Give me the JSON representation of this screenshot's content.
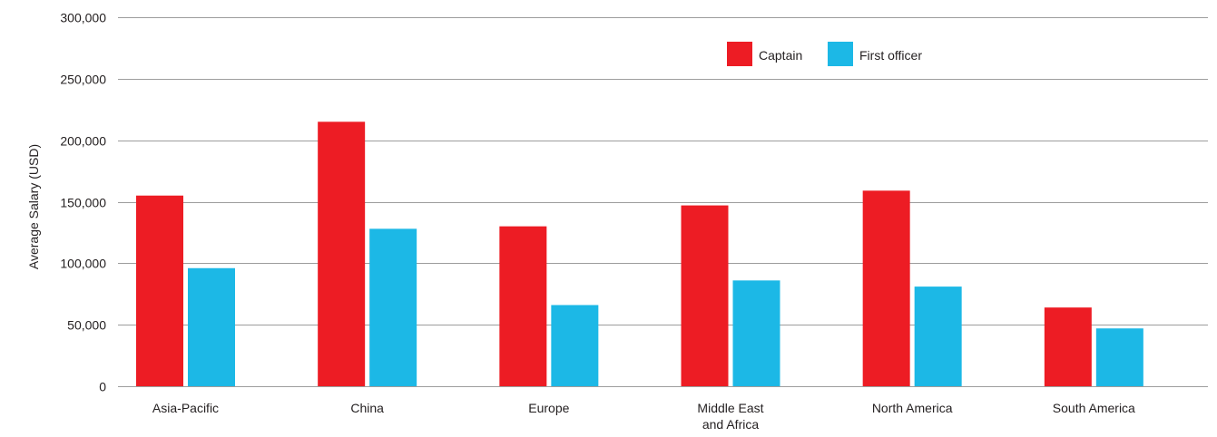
{
  "chart_data": {
    "type": "bar",
    "title": "",
    "xlabel": "",
    "ylabel": "Average Salary (USD)",
    "ylim": [
      0,
      300000
    ],
    "yticks": [
      0,
      50000,
      100000,
      150000,
      200000,
      250000,
      300000
    ],
    "ytick_labels": [
      "0",
      "50,000",
      "100,000",
      "150,000",
      "200,000",
      "250,000",
      "300,000"
    ],
    "categories": [
      "Asia-Pacific",
      "China",
      "Europe",
      "Middle East and Africa",
      "North America",
      "South America"
    ],
    "category_labels": [
      [
        "Asia-Pacific"
      ],
      [
        "China"
      ],
      [
        "Europe"
      ],
      [
        "Middle East",
        "and Africa"
      ],
      [
        "North America"
      ],
      [
        "South America"
      ]
    ],
    "series": [
      {
        "name": "Captain",
        "color": "#ed1c24",
        "values": [
          155000,
          215000,
          130000,
          147000,
          159000,
          64000
        ]
      },
      {
        "name": "First officer",
        "color": "#1cb8e6",
        "values": [
          96000,
          128000,
          66000,
          86000,
          81000,
          47000
        ]
      }
    ],
    "grid": true,
    "legend_position": "top-right"
  }
}
